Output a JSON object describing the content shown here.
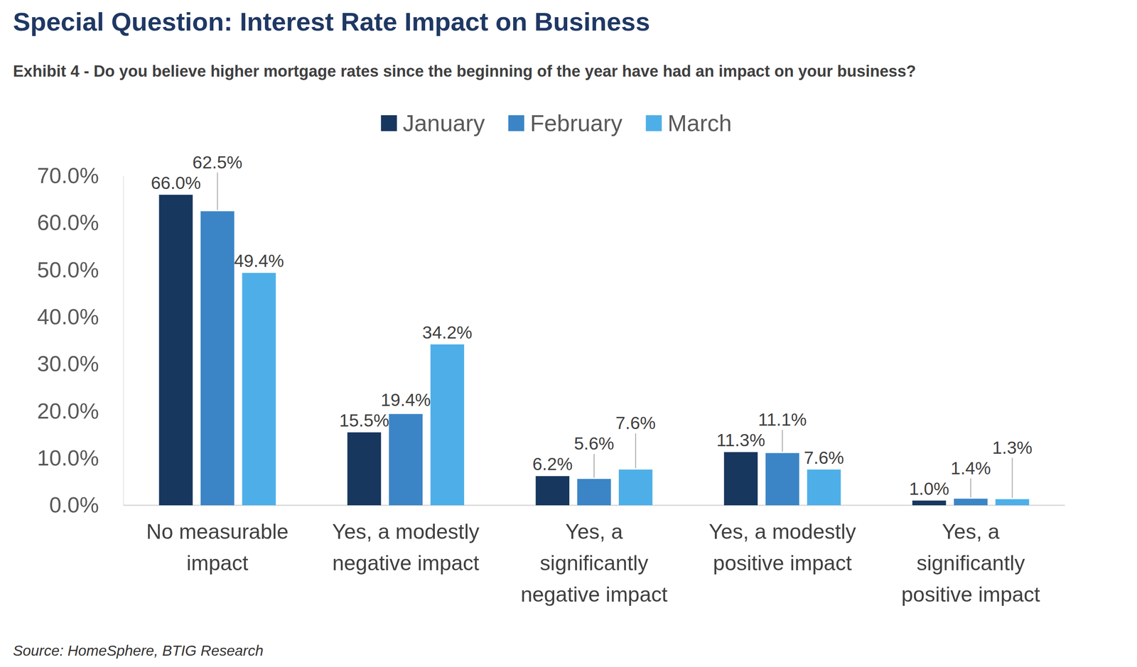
{
  "chart_data": {
    "type": "bar",
    "title": "Special Question: Interest Rate Impact on Business",
    "subtitle": "Exhibit 4 - Do you believe higher mortgage rates since the beginning of the year have had an impact on your business?",
    "source": "Source: HomeSphere, BTIG Research",
    "categories": [
      "No measurable impact",
      "Yes, a modestly negative impact",
      "Yes, a significantly negative impact",
      "Yes, a modestly positive impact",
      "Yes, a significantly positive impact"
    ],
    "series": [
      {
        "name": "January",
        "color": "#17375e",
        "values": [
          66.0,
          15.5,
          6.2,
          11.3,
          1.0
        ],
        "value_labels": [
          "66.0%",
          "15.5%",
          "6.2%",
          "11.3%",
          "1.0%"
        ]
      },
      {
        "name": "February",
        "color": "#3b85c6",
        "values": [
          62.5,
          19.4,
          5.6,
          11.1,
          1.4
        ],
        "value_labels": [
          "62.5%",
          "19.4%",
          "5.6%",
          "11.1%",
          "1.4%"
        ]
      },
      {
        "name": "March",
        "color": "#4eafe8",
        "values": [
          49.4,
          34.2,
          7.6,
          7.6,
          1.3
        ],
        "value_labels": [
          "49.4%",
          "34.2%",
          "7.6%",
          "7.6%",
          "1.3%"
        ]
      }
    ],
    "ylim": [
      0,
      70
    ],
    "yticks": [
      {
        "value": 0,
        "label": "0.0%"
      },
      {
        "value": 10,
        "label": "10.0%"
      },
      {
        "value": 20,
        "label": "20.0%"
      },
      {
        "value": 30,
        "label": "30.0%"
      },
      {
        "value": 40,
        "label": "40.0%"
      },
      {
        "value": 50,
        "label": "50.0%"
      },
      {
        "value": 60,
        "label": "60.0%"
      },
      {
        "value": 70,
        "label": "70.0%"
      }
    ],
    "grid": false,
    "legend": "top",
    "data_labels": true
  }
}
